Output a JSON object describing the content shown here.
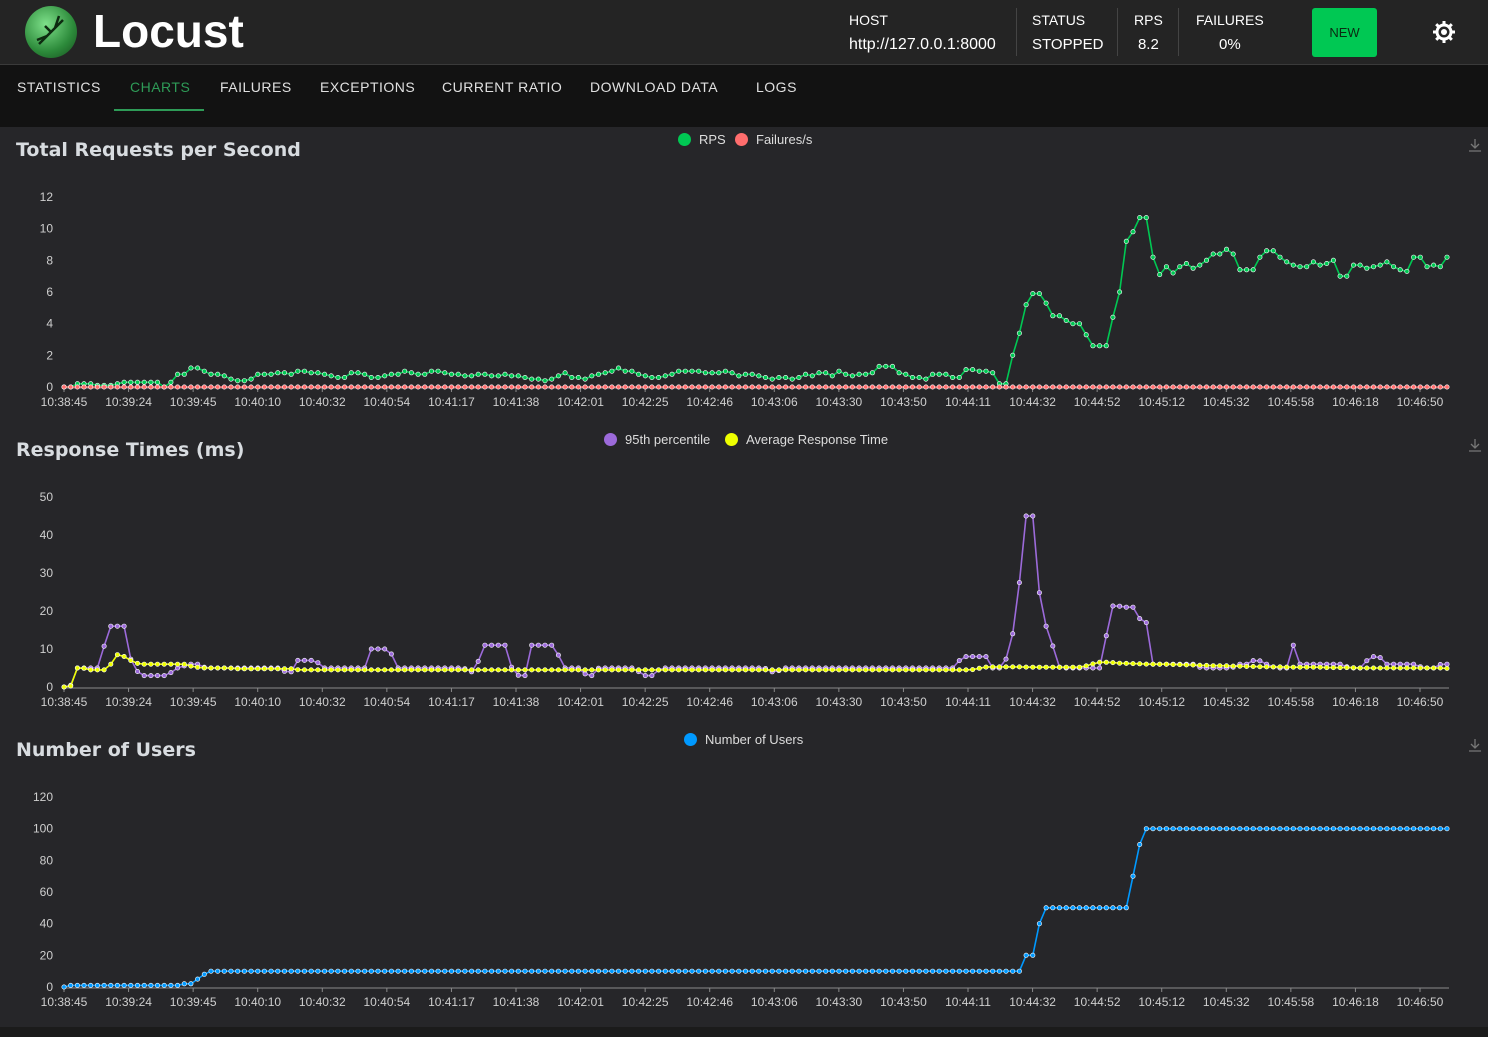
{
  "app": {
    "title": "Locust"
  },
  "header": {
    "host_label": "HOST",
    "host_value": "http://127.0.0.1:8000",
    "status_label": "STATUS",
    "status_value": "STOPPED",
    "rps_label": "RPS",
    "rps_value": "8.2",
    "failures_label": "FAILURES",
    "failures_value": "0%",
    "new_button": "NEW",
    "theme_icon": "gear-icon"
  },
  "tabs": [
    {
      "label": "STATISTICS"
    },
    {
      "label": "CHARTS",
      "active": true
    },
    {
      "label": "FAILURES"
    },
    {
      "label": "EXCEPTIONS"
    },
    {
      "label": "CURRENT RATIO"
    },
    {
      "label": "DOWNLOAD DATA"
    },
    {
      "label": "LOGS"
    }
  ],
  "colors": {
    "rps": "#00c853",
    "failures": "#ff6d6d",
    "p95": "#9c6ada",
    "avg": "#eeff00",
    "users": "#0099ff",
    "accent": "#2e9b57"
  },
  "chart_data": [
    {
      "type": "line",
      "title": "Total Requests per Second",
      "x_ticks": [
        "10:38:45",
        "10:39:24",
        "10:39:45",
        "10:40:10",
        "10:40:32",
        "10:40:54",
        "10:41:17",
        "10:41:38",
        "10:42:01",
        "10:42:25",
        "10:42:46",
        "10:43:06",
        "10:43:30",
        "10:43:50",
        "10:44:11",
        "10:44:32",
        "10:44:52",
        "10:45:12",
        "10:45:32",
        "10:45:58",
        "10:46:18",
        "10:46:50"
      ],
      "y_ticks": [
        0,
        2,
        4,
        6,
        8,
        10,
        12
      ],
      "ylim": [
        0,
        12
      ],
      "legend_position": "top-center",
      "series": [
        {
          "name": "RPS",
          "values": [
            0,
            0,
            0.2,
            0.2,
            0.2,
            0.1,
            0.1,
            0.1,
            0.2,
            0.3,
            0.3,
            0.3,
            0.3,
            0.3,
            0.3,
            0,
            0.3,
            0.8,
            0.8,
            1.2,
            1.2,
            1,
            0.8,
            0.8,
            0.7,
            0.5,
            0.4,
            0.4,
            0.5,
            0.8,
            0.8,
            0.8,
            0.9,
            0.9,
            0.8,
            1,
            1,
            0.9,
            0.9,
            0.8,
            0.7,
            0.6,
            0.6,
            0.9,
            0.9,
            0.8,
            0.6,
            0.6,
            0.7,
            0.8,
            0.8,
            1,
            0.9,
            0.8,
            0.8,
            1,
            1,
            0.9,
            0.8,
            0.8,
            0.7,
            0.7,
            0.8,
            0.8,
            0.7,
            0.7,
            0.8,
            0.7,
            0.7,
            0.6,
            0.5,
            0.5,
            0.4,
            0.5,
            0.7,
            0.9,
            0.6,
            0.6,
            0.5,
            0.7,
            0.8,
            0.9,
            1,
            1.2,
            1,
            1,
            0.8,
            0.7,
            0.6,
            0.6,
            0.7,
            0.8,
            1,
            1,
            1,
            1,
            0.9,
            0.9,
            0.9,
            1,
            0.9,
            0.7,
            0.8,
            0.8,
            0.7,
            0.6,
            0.5,
            0.6,
            0.6,
            0.5,
            0.6,
            0.8,
            0.7,
            0.9,
            0.9,
            0.7,
            1,
            0.8,
            0.7,
            0.8,
            0.8,
            0.9,
            1.3,
            1.3,
            1.3,
            0.9,
            0.8,
            0.6,
            0.6,
            0.5,
            0.8,
            0.8,
            0.8,
            0.6,
            0.6,
            1.1,
            1.1,
            1,
            1,
            0.9,
            0.2,
            0.2,
            2,
            3.4,
            5.2,
            5.9,
            5.9,
            5.3,
            4.5,
            4.5,
            4.2,
            4,
            4,
            3.3,
            2.6,
            2.6,
            2.6,
            4.4,
            6,
            9.2,
            9.8,
            10.7,
            10.7,
            8.2,
            7.1,
            7.6,
            7.2,
            7.6,
            7.8,
            7.5,
            7.7,
            8,
            8.4,
            8.4,
            8.7,
            8.4,
            7.4,
            7.4,
            7.4,
            8.2,
            8.6,
            8.6,
            8.2,
            7.9,
            7.7,
            7.6,
            7.6,
            7.9,
            7.7,
            7.8,
            8,
            7,
            7,
            7.7,
            7.7,
            7.5,
            7.6,
            7.7,
            7.9,
            7.6,
            7.4,
            7.3,
            8.2,
            8.2,
            7.6,
            7.7,
            7.6,
            8.2
          ]
        },
        {
          "name": "Failures/s",
          "values": "zeros"
        }
      ]
    },
    {
      "type": "line",
      "title": "Response Times (ms)",
      "x_ticks": [
        "10:38:45",
        "10:39:24",
        "10:39:45",
        "10:40:10",
        "10:40:32",
        "10:40:54",
        "10:41:17",
        "10:41:38",
        "10:42:01",
        "10:42:25",
        "10:42:46",
        "10:43:06",
        "10:43:30",
        "10:43:50",
        "10:44:11",
        "10:44:32",
        "10:44:52",
        "10:45:12",
        "10:45:32",
        "10:45:58",
        "10:46:18",
        "10:46:50"
      ],
      "y_ticks": [
        0,
        10,
        20,
        30,
        40,
        50
      ],
      "ylim": [
        0,
        50
      ],
      "legend_position": "top-center",
      "series": [
        {
          "name": "95th percentile",
          "values": [
            0,
            0,
            5,
            5,
            5,
            5,
            5,
            16,
            16,
            16,
            16,
            6,
            4,
            3,
            3,
            3,
            3,
            3,
            5,
            5,
            6,
            6,
            6,
            5,
            5,
            5,
            5,
            5,
            5,
            5,
            5,
            5,
            5,
            5,
            5,
            5,
            4,
            4,
            7,
            7,
            7,
            7,
            5,
            5,
            5,
            5,
            5,
            5,
            5,
            5,
            10,
            10,
            10,
            10,
            5,
            5,
            5,
            5,
            5,
            5,
            5,
            5,
            5,
            5,
            5,
            5,
            4,
            4,
            11,
            11,
            11,
            11,
            11,
            4,
            3,
            3,
            11,
            11,
            11,
            11,
            11,
            5,
            5,
            5,
            5,
            3,
            3,
            5,
            5,
            5,
            5,
            5,
            5,
            5,
            3,
            3,
            3,
            5,
            5,
            5,
            5,
            5,
            5,
            5,
            5,
            5,
            5,
            5,
            5,
            5,
            5,
            5,
            5,
            5,
            5,
            4,
            4,
            5,
            5,
            5,
            5,
            5,
            5,
            5,
            5,
            5,
            5,
            5,
            5,
            5,
            5,
            5,
            5,
            5,
            5,
            5,
            5,
            5,
            5,
            5,
            5,
            5,
            5,
            5,
            5,
            5,
            8,
            8,
            8,
            8,
            8,
            5,
            5,
            5,
            14,
            14,
            45,
            45,
            45,
            16,
            16,
            10,
            5,
            5,
            5,
            5,
            5,
            5,
            5,
            5,
            20,
            22,
            21,
            21,
            21,
            18,
            18,
            6,
            6,
            6,
            6,
            6,
            6,
            6,
            6,
            5,
            5,
            5,
            5,
            5,
            5,
            6,
            6,
            6,
            8,
            6,
            6,
            5,
            5,
            5,
            11,
            6,
            6,
            6,
            6,
            6,
            6,
            6,
            6,
            5,
            5,
            5,
            7,
            8,
            8,
            6,
            6,
            6,
            6,
            6,
            6,
            5,
            5,
            5,
            6,
            6
          ]
        },
        {
          "name": "Average Response Time",
          "values": [
            0,
            0,
            5,
            5,
            4.5,
            4.5,
            4.5,
            4.5,
            8.5,
            8.5,
            7.5,
            6.5,
            6,
            6,
            6,
            6,
            6,
            6,
            6,
            6,
            5.5,
            5.2,
            5,
            5,
            5,
            5,
            5,
            4.8,
            4.8,
            4.8,
            4.8,
            4.8,
            4.8,
            4.8,
            4.8,
            4.8,
            4.8,
            4.5,
            4.5,
            4.5,
            4.5,
            4.5,
            4.5,
            4.5,
            4.5,
            4.5,
            4.5,
            4.5,
            4.5,
            4.5,
            4.5,
            4.5,
            4.5,
            4.5,
            4.5,
            4.5,
            4.5,
            4.5,
            4.5,
            4.5,
            4.5,
            4.5,
            4.5,
            4.5,
            4.5,
            4.5,
            4.5,
            4.5,
            4.5,
            4.5,
            4.5,
            4.5,
            4.5,
            4.5,
            4.5,
            4.5,
            4.5,
            4.5,
            4.5,
            4.5,
            4.5,
            4.5,
            4.5,
            4.5,
            4.5,
            4.5,
            4.5,
            4.5,
            4.5,
            4.5,
            4.5,
            4.5,
            4.5,
            4.5,
            4.5,
            4.5,
            4.5,
            4.5,
            4.5,
            4.5,
            4.5,
            4.5,
            4.5,
            4.5,
            4.5,
            4.5,
            4.5,
            4.5,
            4.5,
            4.5,
            4.5,
            4.5,
            4.5,
            4.5,
            4.5,
            4.5,
            4.5,
            4.5,
            4.5,
            4.5,
            4.5,
            4.5,
            4.5,
            4.5,
            4.5,
            4.5,
            4.5,
            4.5,
            4.5,
            4.5,
            4.5,
            4.5,
            4.5,
            4.5,
            4.5,
            4.5,
            4.5,
            4.5,
            4.5,
            4.5,
            4.5,
            4.5,
            4.5,
            4.5,
            4.8,
            5.2,
            5.3,
            5.3,
            5.3,
            5.3,
            5.3,
            5.3,
            5.2,
            5.2,
            5.2,
            5.2,
            5.2,
            5.2,
            5.2,
            5.2,
            5.2,
            5.5,
            6,
            6.5,
            6.5,
            6.5,
            6.3,
            6.2,
            6.2,
            6.1,
            6.1,
            6,
            6,
            6,
            6,
            5.9,
            5.9,
            5.8,
            5.8,
            5.7,
            5.7,
            5.6,
            5.6,
            5.6,
            5.5,
            5.5,
            5.4,
            5.4,
            5.4,
            5.3,
            5.3,
            5.3,
            5.3,
            5.2,
            5.2,
            5.2,
            5.2,
            5.2,
            5.2,
            5.1,
            5.1,
            5.1,
            5.1,
            5.1,
            5,
            5,
            5,
            5,
            5,
            5,
            5,
            5,
            5,
            5,
            5,
            5,
            5,
            5,
            4.9
          ]
        }
      ]
    },
    {
      "type": "line",
      "title": "Number of Users",
      "x_ticks": [
        "10:38:45",
        "10:39:24",
        "10:39:45",
        "10:40:10",
        "10:40:32",
        "10:40:54",
        "10:41:17",
        "10:41:38",
        "10:42:01",
        "10:42:25",
        "10:42:46",
        "10:43:06",
        "10:43:30",
        "10:43:50",
        "10:44:11",
        "10:44:32",
        "10:44:52",
        "10:45:12",
        "10:45:32",
        "10:45:58",
        "10:46:18",
        "10:46:50"
      ],
      "y_ticks": [
        0,
        20,
        40,
        60,
        80,
        100,
        120
      ],
      "ylim": [
        0,
        120
      ],
      "legend_position": "top-center",
      "series": [
        {
          "name": "Number of Users",
          "values": "users_profile"
        }
      ]
    }
  ]
}
